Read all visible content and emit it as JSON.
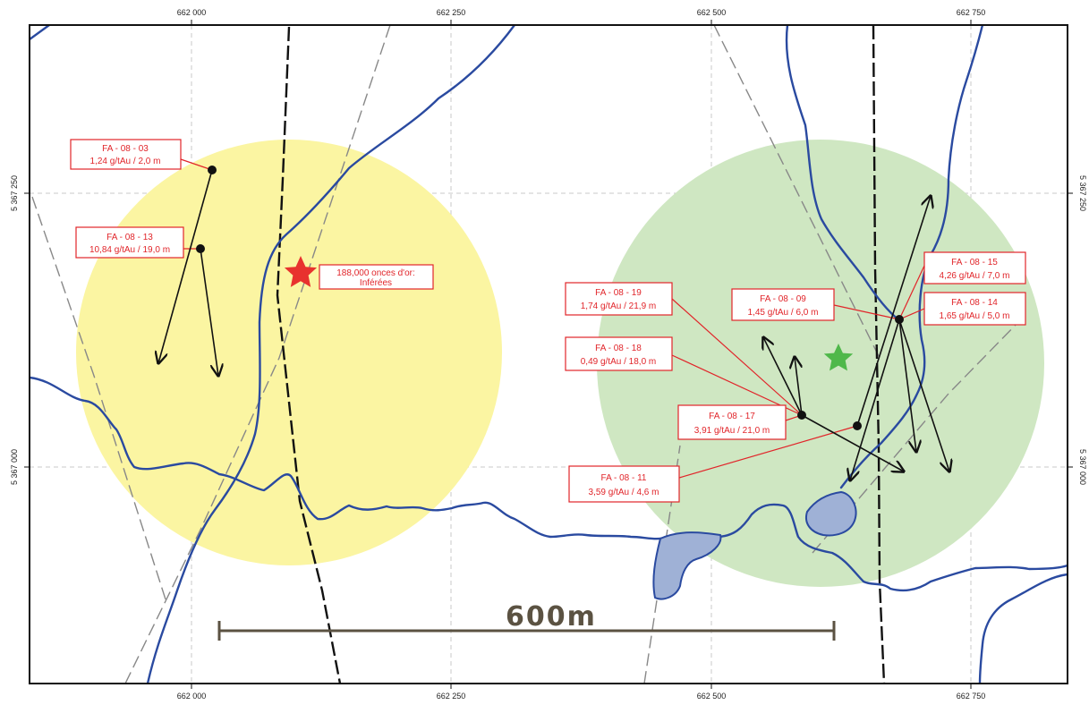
{
  "map": {
    "colors": {
      "river": "#2a4aa0",
      "lake_fill": "#9fb1d6",
      "fault_black": "#111111",
      "fault_grey": "#888888",
      "zone_yellow": "#fbf5a2",
      "zone_green": "#cfe7c2",
      "label_red": "#e1252a",
      "scale_bar": "#5b5242",
      "grid": "#c8c8c8"
    },
    "grid_labels": {
      "x": [
        "662 000",
        "662 250",
        "662 500",
        "662 750"
      ],
      "y": [
        "5 367 250",
        "5 367 000"
      ]
    },
    "resource_label": {
      "line1": "188,000 onces d'or:",
      "line2": "Inférées"
    },
    "markers": {
      "red_star": "star-icon",
      "green_star": "star-icon"
    },
    "scale_bar": {
      "label": "600m"
    },
    "drill_holes": [
      {
        "id": "FA - 08 - 03",
        "assay": "1,24 g/tAu / 2,0 m"
      },
      {
        "id": "FA - 08 - 13",
        "assay": "10,84 g/tAu / 19,0 m"
      },
      {
        "id": "FA - 08 - 19",
        "assay": "1,74 g/tAu / 21,9 m"
      },
      {
        "id": "FA - 08 - 18",
        "assay": "0,49 g/tAu / 18,0 m"
      },
      {
        "id": "FA - 08 - 09",
        "assay": "1,45 g/tAu / 6,0 m"
      },
      {
        "id": "FA - 08 - 15",
        "assay": "4,26 g/tAu / 7,0 m"
      },
      {
        "id": "FA - 08 - 14",
        "assay": "1,65 g/tAu / 5,0 m"
      },
      {
        "id": "FA - 08 - 17",
        "assay": "3,91 g/tAu / 21,0 m"
      },
      {
        "id": "FA - 08 - 11",
        "assay": "3,59 g/tAu / 4,6 m"
      }
    ]
  }
}
